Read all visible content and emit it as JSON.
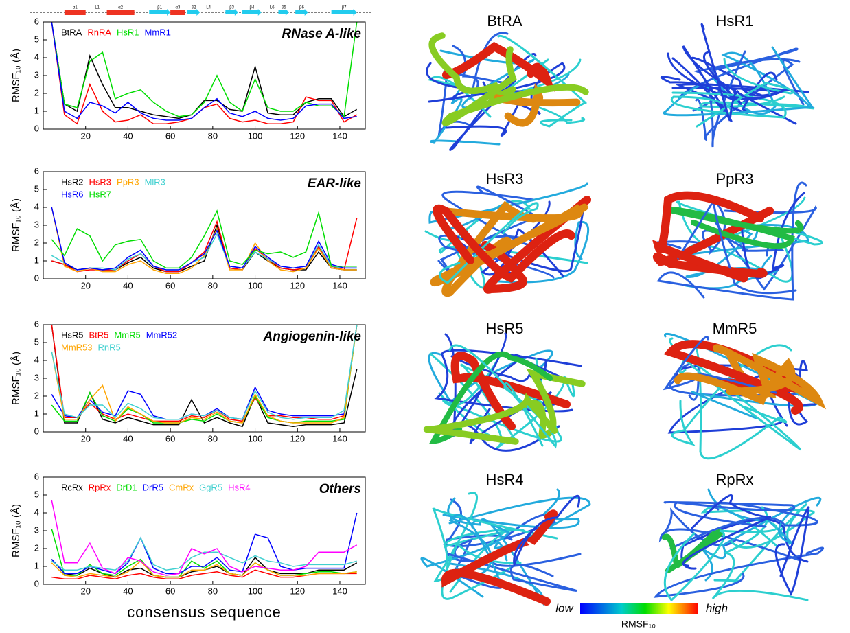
{
  "chart_data": [
    {
      "type": "line",
      "title": "RNase A-like",
      "y_label": "RMSF₁₀ (Å)",
      "legend": "upper left",
      "xlim": [
        0,
        152
      ],
      "ylim": [
        0,
        6
      ],
      "xticks": [
        20,
        40,
        60,
        80,
        100,
        120,
        140
      ],
      "yticks": [
        0,
        1,
        2,
        3,
        4,
        5,
        6
      ],
      "x": [
        4,
        10,
        16,
        22,
        28,
        34,
        40,
        46,
        52,
        58,
        64,
        70,
        76,
        82,
        88,
        94,
        100,
        106,
        112,
        118,
        124,
        130,
        136,
        142,
        148
      ],
      "secondary_structure": [
        {
          "label": "α1",
          "type": "helix",
          "start": 10,
          "end": 20
        },
        {
          "label": "L1",
          "type": "loop",
          "start": 23,
          "end": 28
        },
        {
          "label": "α2",
          "type": "helix",
          "start": 30,
          "end": 43
        },
        {
          "label": "β1",
          "type": "strand",
          "start": 50,
          "end": 60
        },
        {
          "label": "α3",
          "type": "helix",
          "start": 60,
          "end": 67
        },
        {
          "label": "β2",
          "type": "strand",
          "start": 68,
          "end": 74
        },
        {
          "label": "L4",
          "type": "loop",
          "start": 76,
          "end": 80
        },
        {
          "label": "β3",
          "type": "strand",
          "start": 86,
          "end": 92
        },
        {
          "label": "β4",
          "type": "strand",
          "start": 94,
          "end": 103
        },
        {
          "label": "L6",
          "type": "loop",
          "start": 106,
          "end": 110
        },
        {
          "label": "β5",
          "type": "strand",
          "start": 111,
          "end": 116
        },
        {
          "label": "β6",
          "type": "strand",
          "start": 119,
          "end": 125
        },
        {
          "label": "β7",
          "type": "strand",
          "start": 136,
          "end": 148
        }
      ],
      "series": [
        {
          "name": "BtRA",
          "color": "#000000",
          "values": [
            6,
            1.4,
            1.0,
            4.1,
            2.5,
            1.2,
            1.2,
            1.0,
            0.8,
            0.7,
            0.6,
            0.8,
            1.6,
            1.6,
            1.1,
            1.0,
            3.5,
            0.9,
            0.8,
            0.8,
            1.5,
            1.7,
            1.7,
            0.7,
            1.1
          ]
        },
        {
          "name": "RnRA",
          "color": "#ff0000",
          "values": [
            6,
            0.8,
            0.3,
            2.5,
            1.0,
            0.4,
            0.5,
            0.8,
            0.3,
            0.3,
            0.4,
            0.6,
            1.2,
            1.4,
            0.6,
            0.4,
            0.5,
            0.3,
            0.3,
            0.4,
            1.8,
            1.6,
            1.6,
            0.4,
            0.8
          ]
        },
        {
          "name": "HsR1",
          "color": "#00dd00",
          "values": [
            6,
            1.4,
            1.2,
            3.8,
            4.3,
            1.7,
            2.0,
            2.2,
            1.5,
            1.0,
            0.7,
            0.8,
            1.5,
            3.0,
            1.5,
            1.0,
            2.8,
            1.2,
            1.0,
            1.0,
            1.5,
            1.3,
            1.3,
            0.7,
            6
          ]
        },
        {
          "name": "MmR1",
          "color": "#0000ff",
          "values": [
            6,
            1.0,
            0.6,
            1.5,
            1.3,
            0.9,
            1.5,
            0.9,
            0.6,
            0.5,
            0.5,
            0.6,
            1.2,
            1.7,
            0.9,
            0.7,
            1.0,
            0.6,
            0.5,
            0.6,
            1.3,
            1.4,
            1.4,
            0.6,
            0.7
          ]
        }
      ]
    },
    {
      "type": "line",
      "title": "EAR-like",
      "y_label": "RMSF₁₀ (Å)",
      "legend": "upper left",
      "xlim": [
        0,
        152
      ],
      "ylim": [
        0,
        6
      ],
      "xticks": [
        20,
        40,
        60,
        80,
        100,
        120,
        140
      ],
      "yticks": [
        0,
        1,
        2,
        3,
        4,
        5,
        6
      ],
      "x": [
        4,
        10,
        16,
        22,
        28,
        34,
        40,
        46,
        52,
        58,
        64,
        70,
        76,
        82,
        88,
        94,
        100,
        106,
        112,
        118,
        124,
        130,
        136,
        142,
        148
      ],
      "series": [
        {
          "name": "HsR2",
          "color": "#000000",
          "values": [
            1.0,
            0.8,
            0.5,
            0.6,
            0.5,
            0.5,
            0.9,
            1.2,
            0.6,
            0.4,
            0.4,
            0.7,
            1.0,
            3.0,
            0.6,
            0.5,
            1.5,
            1.0,
            0.6,
            0.5,
            0.5,
            1.5,
            0.6,
            0.5,
            0.5
          ]
        },
        {
          "name": "HsR3",
          "color": "#ff0000",
          "values": [
            1.0,
            0.8,
            0.4,
            0.5,
            0.5,
            0.5,
            1.0,
            1.4,
            0.7,
            0.4,
            0.4,
            0.9,
            1.5,
            3.2,
            0.6,
            0.5,
            1.7,
            1.1,
            0.6,
            0.5,
            0.6,
            1.8,
            0.7,
            0.5,
            3.4
          ]
        },
        {
          "name": "PpR3",
          "color": "#ffa500",
          "values": [
            4,
            0.7,
            0.4,
            0.6,
            0.4,
            0.4,
            0.8,
            1.0,
            0.5,
            0.3,
            0.3,
            0.6,
            1.3,
            2.8,
            0.5,
            0.5,
            2.0,
            1.0,
            0.5,
            0.4,
            0.6,
            1.7,
            0.6,
            0.5,
            0.5
          ]
        },
        {
          "name": "MlR3",
          "color": "#40d0d0",
          "values": [
            1.3,
            0.9,
            0.5,
            0.6,
            0.6,
            0.5,
            1.1,
            1.4,
            0.7,
            0.5,
            0.5,
            0.9,
            1.2,
            2.5,
            0.7,
            0.6,
            1.5,
            1.1,
            0.7,
            0.6,
            0.7,
            1.9,
            0.7,
            0.6,
            0.6
          ]
        },
        {
          "name": "HsR6",
          "color": "#0000ff",
          "values": [
            4,
            0.9,
            0.5,
            0.6,
            0.5,
            0.6,
            1.2,
            1.6,
            0.7,
            0.5,
            0.5,
            0.9,
            1.4,
            2.7,
            0.7,
            0.6,
            1.8,
            1.2,
            0.7,
            0.6,
            0.7,
            2.1,
            0.8,
            0.6,
            0.6
          ]
        },
        {
          "name": "HsR7",
          "color": "#00dd00",
          "values": [
            2.2,
            1.3,
            2.8,
            2.4,
            1.0,
            1.9,
            2.1,
            2.2,
            1.0,
            0.6,
            0.6,
            1.2,
            2.4,
            3.8,
            1.0,
            0.8,
            1.6,
            1.4,
            1.5,
            1.2,
            1.5,
            3.7,
            0.7,
            0.7,
            0.7
          ]
        }
      ]
    },
    {
      "type": "line",
      "title": "Angiogenin-like",
      "y_label": "RMSF₁₀ (Å)",
      "legend": "upper left",
      "xlim": [
        0,
        152
      ],
      "ylim": [
        0,
        6
      ],
      "xticks": [
        20,
        40,
        60,
        80,
        100,
        120,
        140
      ],
      "yticks": [
        0,
        1,
        2,
        3,
        4,
        5,
        6
      ],
      "x": [
        4,
        10,
        16,
        22,
        28,
        34,
        40,
        46,
        52,
        58,
        64,
        70,
        76,
        82,
        88,
        94,
        100,
        106,
        112,
        118,
        124,
        130,
        136,
        142,
        148
      ],
      "series": [
        {
          "name": "HsR5",
          "color": "#000000",
          "values": [
            6,
            0.5,
            0.5,
            2.2,
            0.7,
            0.5,
            0.8,
            0.6,
            0.4,
            0.4,
            0.4,
            1.8,
            0.5,
            0.8,
            0.5,
            0.3,
            2.0,
            0.5,
            0.4,
            0.3,
            0.4,
            0.4,
            0.4,
            0.5,
            3.5
          ]
        },
        {
          "name": "BtR5",
          "color": "#ff0000",
          "values": [
            6,
            0.8,
            0.8,
            1.6,
            1.0,
            0.7,
            1.0,
            0.8,
            0.6,
            0.6,
            0.6,
            0.9,
            0.8,
            1.2,
            0.7,
            0.6,
            1.9,
            0.9,
            0.9,
            0.8,
            0.8,
            0.7,
            0.7,
            0.9,
            6
          ]
        },
        {
          "name": "MmR5",
          "color": "#00dd00",
          "values": [
            1.5,
            0.6,
            0.6,
            2.2,
            0.9,
            0.6,
            1.3,
            1.0,
            0.5,
            0.5,
            0.5,
            0.7,
            0.6,
            1.0,
            0.6,
            0.5,
            2.0,
            0.8,
            0.6,
            0.5,
            0.6,
            0.6,
            0.6,
            0.7,
            6
          ]
        },
        {
          "name": "MmR52",
          "color": "#0000ff",
          "values": [
            2.1,
            0.9,
            0.8,
            1.8,
            1.1,
            0.9,
            2.3,
            2.1,
            0.9,
            0.7,
            0.7,
            1.0,
            0.9,
            1.3,
            0.8,
            0.7,
            2.5,
            1.2,
            1.0,
            0.9,
            0.9,
            0.9,
            0.9,
            1.0,
            6
          ]
        },
        {
          "name": "MmR53",
          "color": "#ffa500",
          "values": [
            4.5,
            0.7,
            0.7,
            1.8,
            2.6,
            0.6,
            1.4,
            1.0,
            0.6,
            0.5,
            0.5,
            0.8,
            0.7,
            1.1,
            0.6,
            0.5,
            2.1,
            0.9,
            0.6,
            0.5,
            0.5,
            0.5,
            0.5,
            0.8,
            6
          ]
        },
        {
          "name": "RnR5",
          "color": "#40d0d0",
          "values": [
            4.5,
            1.0,
            0.8,
            1.5,
            1.5,
            0.8,
            1.6,
            1.3,
            0.8,
            0.7,
            0.7,
            1.0,
            0.9,
            1.2,
            0.8,
            0.7,
            2.3,
            1.1,
            0.8,
            0.7,
            0.8,
            0.8,
            0.8,
            1.2,
            6
          ]
        }
      ]
    },
    {
      "type": "line",
      "title": "Others",
      "y_label": "RMSF₁₀ (Å)",
      "x_label": "consensus sequence",
      "legend": "upper left",
      "xlim": [
        0,
        152
      ],
      "ylim": [
        0,
        6
      ],
      "xticks": [
        20,
        40,
        60,
        80,
        100,
        120,
        140
      ],
      "yticks": [
        0,
        1,
        2,
        3,
        4,
        5,
        6
      ],
      "x": [
        4,
        10,
        16,
        22,
        28,
        34,
        40,
        46,
        52,
        58,
        64,
        70,
        76,
        82,
        88,
        94,
        100,
        106,
        112,
        118,
        124,
        130,
        136,
        142,
        148
      ],
      "series": [
        {
          "name": "RcRx",
          "color": "#000000",
          "values": [
            1.4,
            0.6,
            0.5,
            0.9,
            0.6,
            0.4,
            0.8,
            0.9,
            0.5,
            0.4,
            0.4,
            0.7,
            0.8,
            1.0,
            0.6,
            0.5,
            1.5,
            0.8,
            0.6,
            0.6,
            0.6,
            0.8,
            0.8,
            0.8,
            1.2
          ]
        },
        {
          "name": "RpRx",
          "color": "#ff0000",
          "values": [
            0.4,
            0.3,
            0.3,
            0.5,
            0.4,
            0.3,
            0.5,
            0.6,
            0.4,
            0.3,
            0.3,
            0.5,
            0.6,
            0.7,
            0.5,
            0.4,
            0.8,
            0.6,
            0.4,
            0.4,
            0.5,
            0.6,
            0.6,
            0.6,
            0.6
          ]
        },
        {
          "name": "DrD1",
          "color": "#00dd00",
          "values": [
            3.1,
            0.5,
            0.5,
            1.1,
            0.6,
            0.5,
            1.0,
            1.4,
            0.5,
            0.4,
            0.4,
            1.3,
            0.9,
            1.3,
            0.6,
            0.5,
            1.2,
            0.8,
            0.5,
            0.5,
            0.6,
            0.7,
            0.7,
            0.6,
            0.7
          ]
        },
        {
          "name": "DrR5",
          "color": "#0000ff",
          "values": [
            1.4,
            0.6,
            0.6,
            1.0,
            0.8,
            0.6,
            1.2,
            2.6,
            0.9,
            0.6,
            0.6,
            1.0,
            1.0,
            1.5,
            0.8,
            0.7,
            2.8,
            2.6,
            1.0,
            0.8,
            0.9,
            0.9,
            0.9,
            0.9,
            4.0
          ]
        },
        {
          "name": "CmRx",
          "color": "#ffa500",
          "values": [
            1.2,
            0.5,
            0.4,
            0.6,
            0.5,
            0.4,
            0.7,
            1.3,
            0.5,
            0.4,
            0.4,
            0.8,
            0.8,
            1.1,
            0.6,
            0.5,
            1.2,
            0.8,
            0.5,
            0.5,
            0.5,
            0.6,
            0.6,
            0.6,
            0.7
          ]
        },
        {
          "name": "GgR5",
          "color": "#40d0d0",
          "values": [
            1.3,
            0.8,
            0.8,
            1.0,
            0.9,
            0.8,
            1.3,
            2.6,
            1.1,
            0.8,
            0.9,
            1.5,
            1.8,
            1.8,
            1.5,
            1.2,
            1.6,
            1.3,
            1.2,
            1.0,
            1.1,
            1.1,
            1.1,
            1.1,
            1.3
          ]
        },
        {
          "name": "HsR4",
          "color": "#ff00ff",
          "values": [
            4.7,
            1.2,
            1.2,
            2.3,
            0.9,
            0.6,
            1.5,
            1.3,
            0.7,
            0.5,
            0.6,
            2.0,
            1.7,
            2.0,
            1.0,
            0.7,
            1.0,
            0.9,
            0.8,
            0.8,
            1.0,
            1.8,
            1.8,
            1.8,
            2.2
          ]
        }
      ]
    }
  ],
  "structures": {
    "panels": [
      "BtRA",
      "HsR1",
      "HsR3",
      "PpR3",
      "HsR5",
      "MmR5",
      "HsR4",
      "RpRx"
    ]
  },
  "colorbar": {
    "low": "low",
    "high": "high",
    "label": "RMSF₁₀"
  }
}
